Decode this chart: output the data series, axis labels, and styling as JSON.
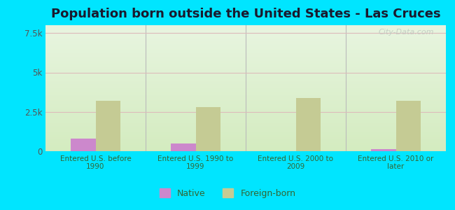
{
  "title": "Population born outside the United States - Las Cruces",
  "categories": [
    "Entered U.S. before\n1990",
    "Entered U.S. 1990 to\n1999",
    "Entered U.S. 2000 to\n2009",
    "Entered U.S. 2010 or\nlater"
  ],
  "native_values": [
    800,
    500,
    0,
    150
  ],
  "foreign_values": [
    3200,
    2800,
    3400,
    3200
  ],
  "native_color": "#cc88cc",
  "foreign_color": "#c5cb94",
  "background_outer": "#00e5ff",
  "background_top": "#e8f5e0",
  "background_bottom": "#d4ecc0",
  "ylim": [
    0,
    8000
  ],
  "yticks": [
    0,
    2500,
    5000,
    7500
  ],
  "ytick_labels": [
    "0",
    "2.5k",
    "5k",
    "7.5k"
  ],
  "bar_width": 0.25,
  "title_fontsize": 13,
  "title_color": "#1a1a2e",
  "axis_label_color": "#336633",
  "tick_label_color": "#555555",
  "grid_color": "#ddbbbb",
  "divider_color": "#bbbbbb",
  "watermark": "City-Data.com",
  "watermark_color": "#c0c8c0"
}
